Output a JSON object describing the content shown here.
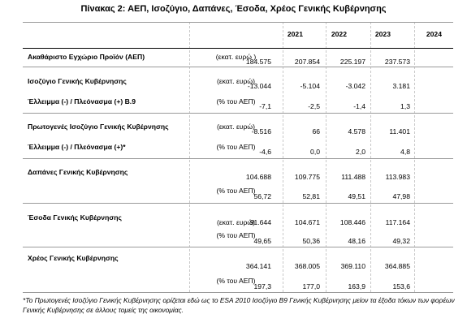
{
  "title": "Πίνακας 2: ΑΕΠ, Ισοζύγιο, Δαπάνες, Έσοδα, Χρέος Γενικής Κυβέρνησης",
  "years": [
    "2021",
    "2022",
    "2023",
    "2024"
  ],
  "rows": [
    {
      "label": "Ακαθάριστο Εγχώριο Προϊόν (ΑΕΠ)",
      "unit": "(εκατ. ευρώ )",
      "values": [
        "184.575",
        "207.854",
        "225.197",
        "237.573"
      ]
    },
    {
      "label": "Ισοζύγιο Γενικής Κυβέρνησης",
      "unit": "(εκατ. ευρώ)",
      "values": [
        "-13.044",
        "-5.104",
        "-3.042",
        "3.181"
      ]
    },
    {
      "label": "Έλλειμμα (-) / Πλεόνασμα (+) Β.9",
      "unit": "(% του ΑΕΠ)",
      "values": [
        "-7,1",
        "-2,5",
        "-1,4",
        "1,3"
      ]
    },
    {
      "label": "Πρωτογενές Ισοζύγιο  Γενικής Κυβέρνησης",
      "unit": "(εκατ. ευρώ)",
      "values": [
        "-8.516",
        "66",
        "4.578",
        "11.401"
      ]
    },
    {
      "label": "Έλλειμμα (-) / Πλεόνασμα (+)*",
      "unit": "(% του ΑΕΠ)",
      "values": [
        "-4,6",
        "0,0",
        "2,0",
        "4,8"
      ]
    },
    {
      "label": "Δαπάνες Γενικής Κυβέρνησης",
      "unit": "(εκατ. ευρώ)",
      "values": [
        "104.688",
        "109.775",
        "111.488",
        "113.983"
      ]
    },
    {
      "label": "",
      "unit": "(% του ΑΕΠ)",
      "values": [
        "56,72",
        "52,81",
        "49,51",
        "47,98"
      ]
    },
    {
      "label": "Έσοδα Γενικής Κυβέρνησης",
      "unit": "(εκατ. ευρώ)",
      "values": [
        "91.644",
        "104.671",
        "108.446",
        "117.164"
      ]
    },
    {
      "label": "",
      "unit": "(% του ΑΕΠ)",
      "values": [
        "49,65",
        "50,36",
        "48,16",
        "49,32"
      ]
    },
    {
      "label": "Χρέος Γενικής Κυβέρνησης",
      "unit": "(εκατ. ευρώ)",
      "values": [
        "364.141",
        "368.005",
        "369.110",
        "364.885"
      ]
    },
    {
      "label": "",
      "unit": "(% του ΑΕΠ)",
      "values": [
        "197,3",
        "177,0",
        "163,9",
        "153,6"
      ]
    }
  ],
  "footnote": "*Το Πρωτογενές Ισοζύγιο Γενικής Κυβέρνησης ορίζεται εδώ ως το ESA 2010 Ισοζύγιο Β9 Γενικής Κυβέρνησης μείον τα έξοδα τόκων των φορέων Γενικής Κυβέρνησης σε άλλους τομείς της οικονομίας."
}
